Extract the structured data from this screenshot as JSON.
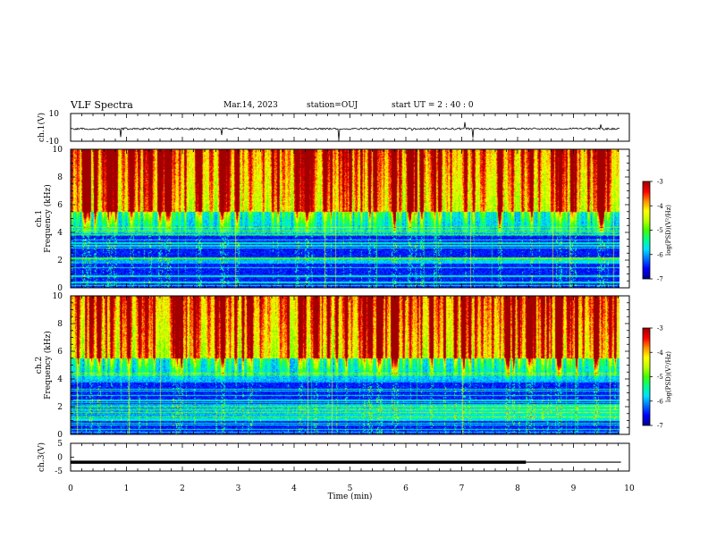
{
  "header": {
    "title": "VLF Spectra",
    "date": "Mar.14, 2023",
    "station": "station=OUJ",
    "start": "start  UT  =   2  : 40 : 0"
  },
  "chart_data": [
    {
      "type": "line",
      "panel": "ch1-waveform",
      "ylabel": "ch.1(V)",
      "ylim": [
        -10,
        10
      ],
      "tick_labels": [
        "10",
        "-10"
      ],
      "x_range_min": [
        0,
        10
      ],
      "note_values": "noisy trace around -1 V with sharp negative spikes"
    },
    {
      "type": "heatmap",
      "panel": "ch1-spectrogram",
      "ylabel": "ch.1\nFrequency (kHz)",
      "ylim": [
        0,
        10
      ],
      "y_ticks": [
        "0",
        "2",
        "4",
        "6",
        "8",
        "10"
      ],
      "colorbar": {
        "label": "log(PSD)(V²/Hz)",
        "range": [
          -7,
          -3
        ],
        "ticks": [
          "-3",
          "-4",
          "-5",
          "-6",
          "-7"
        ]
      }
    },
    {
      "type": "heatmap",
      "panel": "ch2-spectrogram",
      "ylabel": "ch.2\nFrequency (kHz)",
      "ylim": [
        0,
        10
      ],
      "y_ticks": [
        "0",
        "2",
        "4",
        "6",
        "8",
        "10"
      ],
      "colorbar": {
        "label": "log(PSD)(V²/Hz)",
        "range": [
          -7,
          -3
        ],
        "ticks": [
          "-3",
          "-4",
          "-5",
          "-6",
          "-7"
        ]
      }
    },
    {
      "type": "line",
      "panel": "ch3-waveform",
      "ylabel": "ch.3(V)",
      "ylim": [
        -5,
        5
      ],
      "tick_labels": [
        "5",
        "0",
        "-5"
      ],
      "xlabel": "Time (min)",
      "xlim": [
        0,
        10
      ],
      "x_ticks": [
        "0",
        "1",
        "2",
        "3",
        "4",
        "5",
        "6",
        "7",
        "8",
        "9",
        "10"
      ],
      "series": [
        {
          "values_x": [
            0,
            8.15
          ],
          "values_y": [
            -1.8,
            -1.8
          ],
          "style": "thick"
        },
        {
          "values_x": [
            8.15,
            9.85
          ],
          "values_y": [
            -1.8,
            -1.8
          ],
          "style": "thin"
        }
      ]
    }
  ],
  "colors": {
    "colormap": [
      "#00008f",
      "#0000ff",
      "#0070ff",
      "#00e0ff",
      "#00ff90",
      "#40ff00",
      "#c0ff00",
      "#ffff00",
      "#ff9000",
      "#ff0000",
      "#a00000"
    ]
  }
}
